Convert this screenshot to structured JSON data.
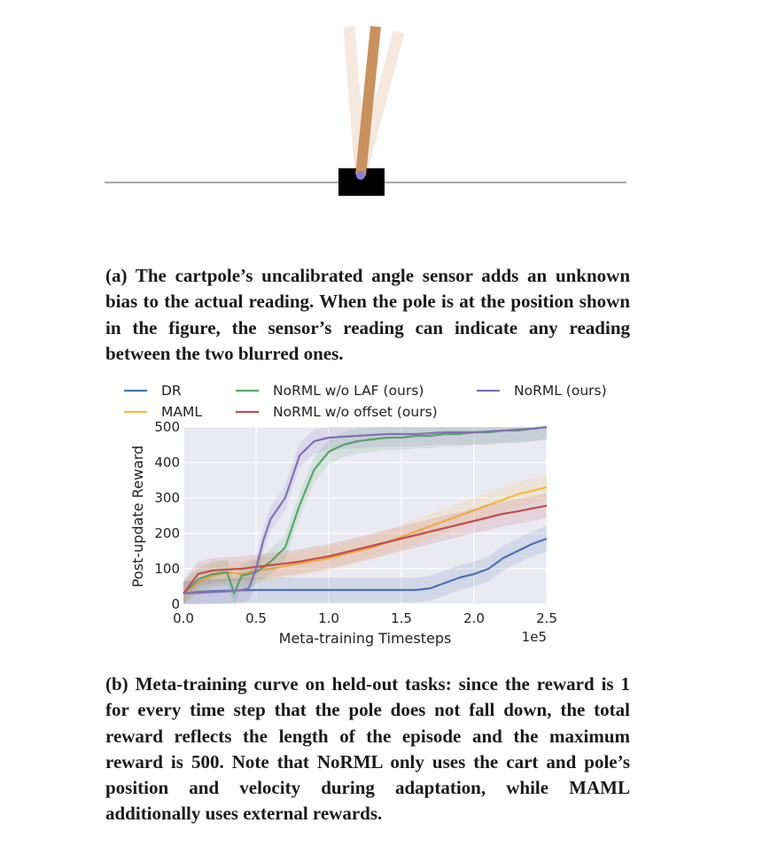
{
  "caption_a": "(a) The cartpole’s uncalibrated angle sensor adds an un­known bias to the actual reading. When the pole is at the position shown in the figure, the sensor’s reading can in­dicate any reading between the two blurred ones.",
  "caption_b": "(b) Meta-training curve on held-out tasks: since the re­ward is 1 for every time step that the pole does not fall down, the total reward reflects the length of the episode and the maximum reward is 500. Note that NoRML only uses the cart and pole’s position and velocity during adaptation, while MAML additionally uses external re­wards.",
  "colors": {
    "pole": "#c8915e",
    "pole_blur": "#f5e8df",
    "cart": "#000000",
    "axle": "#8b7fd6",
    "plot_bg": "#eaeaf2"
  },
  "chart_data": {
    "type": "line",
    "title": "",
    "xlabel": "Meta-training Timesteps",
    "ylabel": "Post-update Reward",
    "x_offset_label": "1e5",
    "xlim": [
      0.0,
      2.5
    ],
    "ylim": [
      0,
      500
    ],
    "xticks": [
      "0.0",
      "0.5",
      "1.0",
      "1.5",
      "2.0",
      "2.5"
    ],
    "yticks": [
      "0",
      "100",
      "200",
      "300",
      "400",
      "500"
    ],
    "grid": true,
    "legend_position": "top",
    "series": [
      {
        "name": "DR",
        "color": "#4c72b0",
        "x": [
          0.0,
          0.1,
          0.2,
          0.3,
          0.4,
          0.5,
          0.6,
          0.7,
          0.8,
          0.9,
          1.0,
          1.1,
          1.2,
          1.3,
          1.4,
          1.5,
          1.6,
          1.7,
          1.8,
          1.9,
          2.0,
          2.1,
          2.2,
          2.3,
          2.4,
          2.5
        ],
        "y": [
          30,
          35,
          37,
          38,
          39,
          40,
          40,
          40,
          40,
          40,
          40,
          40,
          40,
          40,
          40,
          40,
          40,
          45,
          60,
          75,
          85,
          100,
          130,
          150,
          170,
          185
        ]
      },
      {
        "name": "MAML",
        "color": "#f5b940",
        "x": [
          0.0,
          0.1,
          0.2,
          0.3,
          0.4,
          0.5,
          0.6,
          0.7,
          0.8,
          0.9,
          1.0,
          1.1,
          1.2,
          1.3,
          1.4,
          1.5,
          1.6,
          1.7,
          1.8,
          1.9,
          2.0,
          2.1,
          2.2,
          2.3,
          2.4,
          2.5
        ],
        "y": [
          30,
          60,
          80,
          90,
          85,
          95,
          100,
          108,
          115,
          122,
          130,
          140,
          150,
          160,
          175,
          190,
          205,
          220,
          235,
          250,
          265,
          280,
          295,
          310,
          320,
          330
        ]
      },
      {
        "name": "NoRML w/o LAF (ours)",
        "color": "#55a868",
        "x": [
          0.0,
          0.1,
          0.2,
          0.3,
          0.35,
          0.4,
          0.45,
          0.5,
          0.6,
          0.7,
          0.8,
          0.9,
          1.0,
          1.1,
          1.2,
          1.3,
          1.4,
          1.5,
          1.6,
          1.7,
          1.8,
          1.9,
          2.0,
          2.1,
          2.2,
          2.3,
          2.4,
          2.5
        ],
        "y": [
          30,
          70,
          85,
          90,
          30,
          80,
          85,
          90,
          120,
          160,
          280,
          380,
          430,
          450,
          460,
          465,
          470,
          470,
          475,
          475,
          480,
          480,
          485,
          485,
          490,
          490,
          495,
          500
        ]
      },
      {
        "name": "NoRML w/o offset (ours)",
        "color": "#c44e52",
        "x": [
          0.0,
          0.1,
          0.2,
          0.3,
          0.4,
          0.5,
          0.6,
          0.7,
          0.8,
          0.9,
          1.0,
          1.1,
          1.2,
          1.3,
          1.4,
          1.5,
          1.6,
          1.7,
          1.8,
          1.9,
          2.0,
          2.1,
          2.2,
          2.3,
          2.4,
          2.5
        ],
        "y": [
          30,
          85,
          95,
          98,
          100,
          105,
          110,
          115,
          120,
          128,
          135,
          145,
          155,
          165,
          175,
          185,
          195,
          205,
          215,
          225,
          235,
          245,
          255,
          262,
          270,
          278
        ]
      },
      {
        "name": "NoRML (ours)",
        "color": "#8172b2",
        "x": [
          0.0,
          0.1,
          0.2,
          0.3,
          0.4,
          0.45,
          0.5,
          0.55,
          0.6,
          0.7,
          0.8,
          0.9,
          1.0,
          1.2,
          1.4,
          1.6,
          1.8,
          2.0,
          2.2,
          2.4,
          2.5
        ],
        "y": [
          30,
          32,
          34,
          36,
          40,
          45,
          100,
          180,
          240,
          300,
          420,
          460,
          470,
          475,
          480,
          480,
          485,
          485,
          490,
          495,
          500
        ]
      }
    ]
  }
}
